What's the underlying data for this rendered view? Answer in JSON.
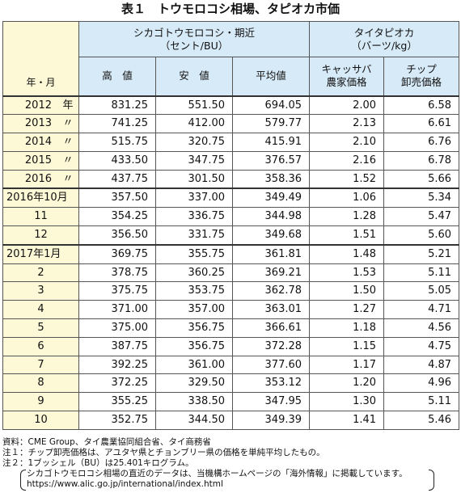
{
  "title": "表１　トウモロコシ相場、タピオカ市価",
  "header": {
    "row_label": "年・月",
    "group1": "シカゴトウモロコシ・期近",
    "group1_unit": "（セント/BU）",
    "group2": "タイタピオカ",
    "group2_unit": "（バーツ/kg）",
    "cols": [
      "高　値",
      "安　値",
      "平均値"
    ],
    "col4_line1": "キャッサバ",
    "col4_line2": "農家価格",
    "col5_line1": "チップ",
    "col5_line2": "卸売価格"
  },
  "rows": [
    {
      "y": "2012",
      "s": "年",
      "v": [
        "831.25",
        "551.50",
        "694.05",
        "2.00",
        "6.58"
      ]
    },
    {
      "y": "2013",
      "s": "〃",
      "v": [
        "741.25",
        "412.00",
        "579.77",
        "2.13",
        "6.61"
      ]
    },
    {
      "y": "2014",
      "s": "〃",
      "v": [
        "515.75",
        "320.75",
        "415.91",
        "2.10",
        "6.76"
      ]
    },
    {
      "y": "2015",
      "s": "〃",
      "v": [
        "433.50",
        "347.75",
        "376.57",
        "2.16",
        "6.78"
      ]
    },
    {
      "y": "2016",
      "s": "〃",
      "v": [
        "437.75",
        "301.50",
        "358.36",
        "1.52",
        "5.66"
      ]
    },
    {
      "label": "2016年10月",
      "v": [
        "357.50",
        "337.00",
        "349.49",
        "1.06",
        "5.34"
      ]
    },
    {
      "label": "11",
      "v": [
        "354.25",
        "336.75",
        "344.98",
        "1.28",
        "5.47"
      ]
    },
    {
      "label": "12",
      "v": [
        "356.50",
        "331.75",
        "349.68",
        "1.51",
        "5.60"
      ]
    },
    {
      "label": "2017年1月",
      "v": [
        "369.75",
        "355.75",
        "361.81",
        "1.48",
        "5.21"
      ]
    },
    {
      "label": "2",
      "v": [
        "378.75",
        "360.25",
        "369.21",
        "1.53",
        "5.11"
      ]
    },
    {
      "label": "3",
      "v": [
        "375.75",
        "353.75",
        "362.78",
        "1.50",
        "5.05"
      ]
    },
    {
      "label": "4",
      "v": [
        "371.00",
        "357.00",
        "363.01",
        "1.27",
        "4.71"
      ]
    },
    {
      "label": "5",
      "v": [
        "375.00",
        "356.75",
        "366.61",
        "1.18",
        "4.56"
      ]
    },
    {
      "label": "6",
      "v": [
        "387.75",
        "356.75",
        "372.28",
        "1.15",
        "4.75"
      ]
    },
    {
      "label": "7",
      "v": [
        "392.25",
        "361.00",
        "377.60",
        "1.17",
        "4.87"
      ]
    },
    {
      "label": "8",
      "v": [
        "372.25",
        "329.50",
        "353.12",
        "1.20",
        "4.96"
      ]
    },
    {
      "label": "9",
      "v": [
        "355.25",
        "338.50",
        "347.95",
        "1.30",
        "5.11"
      ]
    },
    {
      "label": "10",
      "v": [
        "352.75",
        "344.50",
        "349.39",
        "1.41",
        "5.46"
      ]
    }
  ],
  "notes": {
    "source": "資料：CME Group、タイ農業協同組合省、タイ商務省",
    "note1": "注１：チップ卸売価格は、アユタヤ県とチョンブリー県の価格を単純平均したもの。",
    "note2": "注２：1ブッシェル（BU）は25.401キログラム。",
    "paren1": "シカゴトウモロコシ相場の直近のデータは、当機構ホームページの「海外情報」に掲載しています。",
    "paren2": "https://www.alic.go.jp/international/index.html"
  }
}
